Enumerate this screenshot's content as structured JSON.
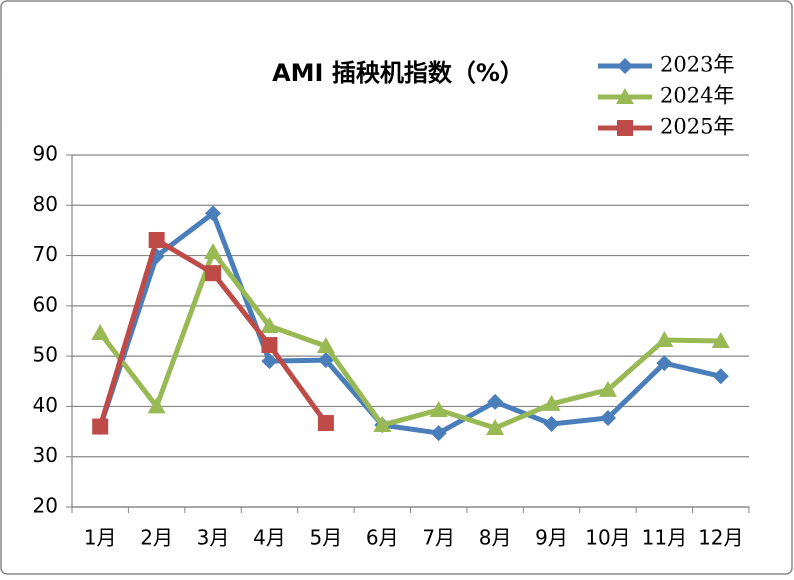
{
  "chart_data": {
    "type": "line",
    "title": "AMI 插秧机指数（%）",
    "categories": [
      "1月",
      "2月",
      "3月",
      "4月",
      "5月",
      "6月",
      "7月",
      "8月",
      "9月",
      "10月",
      "11月",
      "12月"
    ],
    "series": [
      {
        "name": "2023年",
        "color": "#4a7ebb",
        "marker": "diamond",
        "values": [
          35.9,
          69.9,
          78.4,
          49.0,
          49.2,
          36.3,
          34.7,
          40.9,
          36.5,
          37.7,
          48.6,
          46.0
        ]
      },
      {
        "name": "2024年",
        "color": "#98b954",
        "marker": "triangle",
        "values": [
          54.6,
          40.0,
          70.7,
          56.0,
          52.0,
          36.3,
          39.3,
          35.7,
          40.5,
          43.3,
          53.2,
          53.0
        ]
      },
      {
        "name": "2025年",
        "color": "#be4b48",
        "marker": "square",
        "values": [
          36.0,
          73.1,
          66.5,
          52.2,
          36.7,
          null,
          null,
          null,
          null,
          null,
          null,
          null
        ]
      }
    ],
    "ylim": [
      20,
      90
    ],
    "yticks": [
      20,
      30,
      40,
      50,
      60,
      70,
      80,
      90
    ],
    "grid": true,
    "legend": "upper right"
  }
}
